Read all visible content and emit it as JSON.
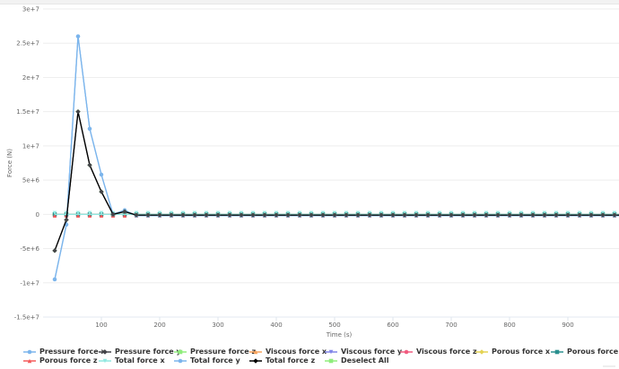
{
  "chart_data": {
    "type": "line",
    "title": "",
    "xlabel": "Time (s)",
    "ylabel": "Force (N)",
    "xlim": [
      0,
      1000
    ],
    "ylim": [
      -15000000,
      30000000
    ],
    "x_ticks": [
      "100",
      "200",
      "300",
      "400",
      "500",
      "600",
      "700",
      "800",
      "900",
      "1"
    ],
    "y_ticks": [
      "3e+7",
      "2.5e+7",
      "2e+7",
      "1.5e+7",
      "1e+7",
      "5e+6",
      "0",
      "-5e+6",
      "-1e+7",
      "-1.5e+7"
    ],
    "grid": true,
    "legend_position": "bottom",
    "x": [
      20,
      40,
      60,
      80,
      100,
      120,
      140,
      160,
      180,
      200,
      220,
      240,
      260,
      280,
      300,
      320,
      340,
      360,
      380,
      400,
      420,
      440,
      460,
      480,
      500,
      520,
      540,
      560,
      580,
      600,
      620,
      640,
      660,
      680,
      700,
      720,
      740,
      760,
      780,
      800,
      820,
      840,
      860,
      880,
      900,
      920,
      940,
      960,
      980,
      1000
    ],
    "series": [
      {
        "name": "Pressure force x",
        "color": "#7cb5ec",
        "marker": "circle",
        "tail": -200000,
        "head": [
          -9500000,
          -1500000,
          26000000,
          12500000,
          5800000,
          0,
          600000
        ]
      },
      {
        "name": "Pressure force y",
        "color": "#434348",
        "marker_color": "#90ed7d",
        "marker": "diamond",
        "tail": -100000,
        "head": [
          -5300000,
          -800000,
          15000000,
          7200000,
          3300000,
          0,
          400000
        ]
      },
      {
        "name": "Pressure force z",
        "color": "#90ed7d",
        "marker": "square",
        "tail": 0,
        "head": [
          0,
          0,
          0,
          0,
          0,
          0,
          0
        ]
      },
      {
        "name": "Viscous force x",
        "color": "#f7a35c",
        "marker": "triangle",
        "tail": 0,
        "head": [
          0,
          0,
          0,
          0,
          0,
          0,
          0
        ]
      },
      {
        "name": "Viscous force y",
        "color": "#8085e9",
        "marker": "triangle-down",
        "tail": 0,
        "head": [
          0,
          0,
          0,
          0,
          0,
          0,
          0
        ]
      },
      {
        "name": "Viscous force z",
        "color": "#f15c80",
        "marker": "circle",
        "tail": 0,
        "head": [
          0,
          0,
          0,
          0,
          0,
          0,
          0
        ]
      },
      {
        "name": "Porous force x",
        "color": "#e4d354",
        "marker": "diamond",
        "tail": 0,
        "head": [
          0,
          0,
          0,
          0,
          0,
          0,
          0
        ]
      },
      {
        "name": "Porous force y",
        "color": "#2b908f",
        "marker": "square",
        "tail": 0,
        "head": [
          0,
          0,
          0,
          0,
          0,
          0,
          0
        ]
      },
      {
        "name": "Porous force z",
        "color": "#f45b5b",
        "marker": "triangle",
        "tail": 0,
        "head": [
          0,
          0,
          0,
          0,
          0,
          0,
          0
        ]
      },
      {
        "name": "Total force x",
        "color": "#91e8e1",
        "marker": "triangle-down",
        "tail": 0,
        "head": [
          0,
          0,
          0,
          0,
          0,
          0,
          0
        ]
      },
      {
        "name": "Total force y",
        "color": "#7cb5ec",
        "marker": "circle",
        "tail": -200000,
        "head": [
          -9500000,
          -1500000,
          26000000,
          12500000,
          5800000,
          0,
          600000
        ]
      },
      {
        "name": "Total force z",
        "color": "#000000",
        "marker_color": "#434348",
        "marker": "diamond",
        "tail": -100000,
        "head": [
          -5300000,
          -800000,
          15000000,
          7200000,
          3300000,
          0,
          400000
        ]
      }
    ]
  },
  "legend": {
    "row1": [
      {
        "label": "Pressure force x",
        "color": "#7cb5ec",
        "marker": "circle"
      },
      {
        "label": "Pressure force y",
        "color": "#434348",
        "marker": "diamond"
      },
      {
        "label": "Pressure force z",
        "color": "#90ed7d",
        "marker": "square"
      },
      {
        "label": "Viscous force x",
        "color": "#f7a35c",
        "marker": "triangle"
      },
      {
        "label": "Viscous force y",
        "color": "#8085e9",
        "marker": "triangle-down"
      },
      {
        "label": "Viscous force z",
        "color": "#f15c80",
        "marker": "circle"
      },
      {
        "label": "Porous force x",
        "color": "#e4d354",
        "marker": "diamond"
      },
      {
        "label": "Porous force y",
        "color": "#2b908f",
        "marker": "square"
      }
    ],
    "row2": [
      {
        "label": "Porous force z",
        "color": "#f45b5b",
        "marker": "triangle"
      },
      {
        "label": "Total force x",
        "color": "#91e8e1",
        "marker": "triangle-down"
      },
      {
        "label": "Total force y",
        "color": "#7cb5ec",
        "marker": "circle"
      },
      {
        "label": "Total force z",
        "color": "#000000",
        "marker": "diamond"
      },
      {
        "label": "Deselect All",
        "color": "#90ed7d",
        "marker": "square"
      }
    ]
  }
}
